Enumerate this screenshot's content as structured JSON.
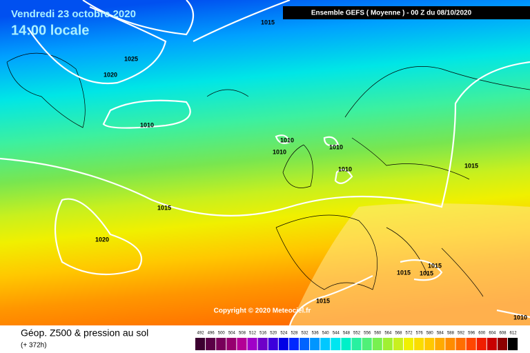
{
  "header": {
    "date": "Vendredi 23 octobre 2020",
    "time": "14:00 locale",
    "run": "Ensemble GEFS  ( Moyenne )  - 00 Z du 08/10/2020"
  },
  "isobars": [
    "1015",
    "1025",
    "1020",
    "1010",
    "1010",
    "1010",
    "1010",
    "1010",
    "1015",
    "1015",
    "1020",
    "1015",
    "1015",
    "1015",
    "1015",
    "1010"
  ],
  "copyright": "Copyright © 2020 Meteociel.fr",
  "footer": {
    "title": "Géop. Z500 & pression au sol",
    "lead": "(+ 372h)"
  },
  "legend": {
    "labels": [
      "492",
      "496",
      "500",
      "504",
      "508",
      "512",
      "516",
      "520",
      "524",
      "528",
      "532",
      "536",
      "540",
      "544",
      "548",
      "552",
      "556",
      "560",
      "564",
      "568",
      "572",
      "576",
      "580",
      "584",
      "588",
      "592",
      "596",
      "600",
      "604",
      "608",
      "612"
    ],
    "colors": [
      "#3c0030",
      "#5a0046",
      "#78005a",
      "#96006e",
      "#b40096",
      "#a000c8",
      "#6e00c8",
      "#3c00dc",
      "#0000e6",
      "#0028ff",
      "#0064ff",
      "#0096ff",
      "#00c8ff",
      "#00e6f0",
      "#00f0c8",
      "#28f0a0",
      "#50f078",
      "#78f050",
      "#a0f032",
      "#c8f01e",
      "#f0f000",
      "#fadc00",
      "#ffc800",
      "#ffaa00",
      "#ff8c00",
      "#ff6e00",
      "#ff4600",
      "#f01e00",
      "#c80000",
      "#8c0000",
      "#000000"
    ]
  }
}
